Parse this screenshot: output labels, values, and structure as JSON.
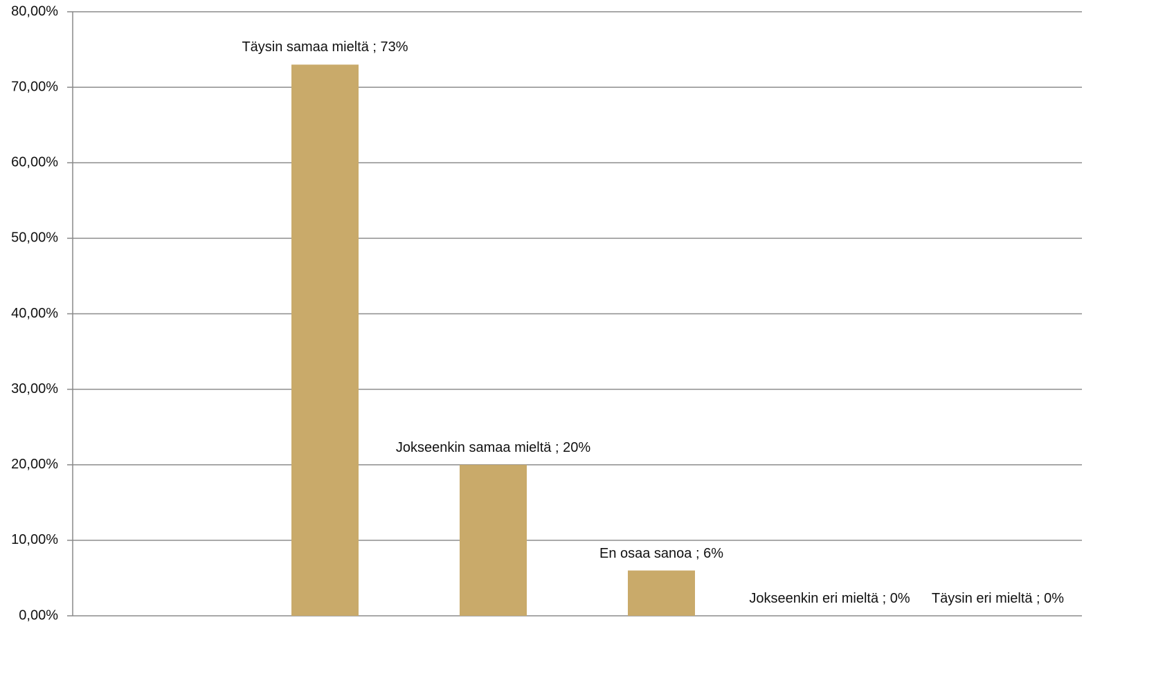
{
  "chart_data": {
    "type": "bar",
    "values": [
      null,
      73,
      20,
      6,
      0,
      0
    ],
    "value_labels": [
      null,
      "Täysin samaa mieltä ; 73%",
      "Jokseenkin samaa mieltä ; 20%",
      "En osaa sanoa ; 6%",
      "Jokseenkin eri mieltä ; 0%",
      "Täysin eri mieltä ; 0%"
    ],
    "color": "#c9aa6a",
    "ylim": [
      0,
      80
    ],
    "yticks": [
      {
        "value": 0,
        "label": "0,00%"
      },
      {
        "value": 10,
        "label": "10,00%"
      },
      {
        "value": 20,
        "label": "20,00%"
      },
      {
        "value": 30,
        "label": "30,00%"
      },
      {
        "value": 40,
        "label": "40,00%"
      },
      {
        "value": 50,
        "label": "50,00%"
      },
      {
        "value": 60,
        "label": "60,00%"
      },
      {
        "value": 70,
        "label": "70,00%"
      },
      {
        "value": 80,
        "label": "80,00%"
      }
    ],
    "grid": true
  }
}
